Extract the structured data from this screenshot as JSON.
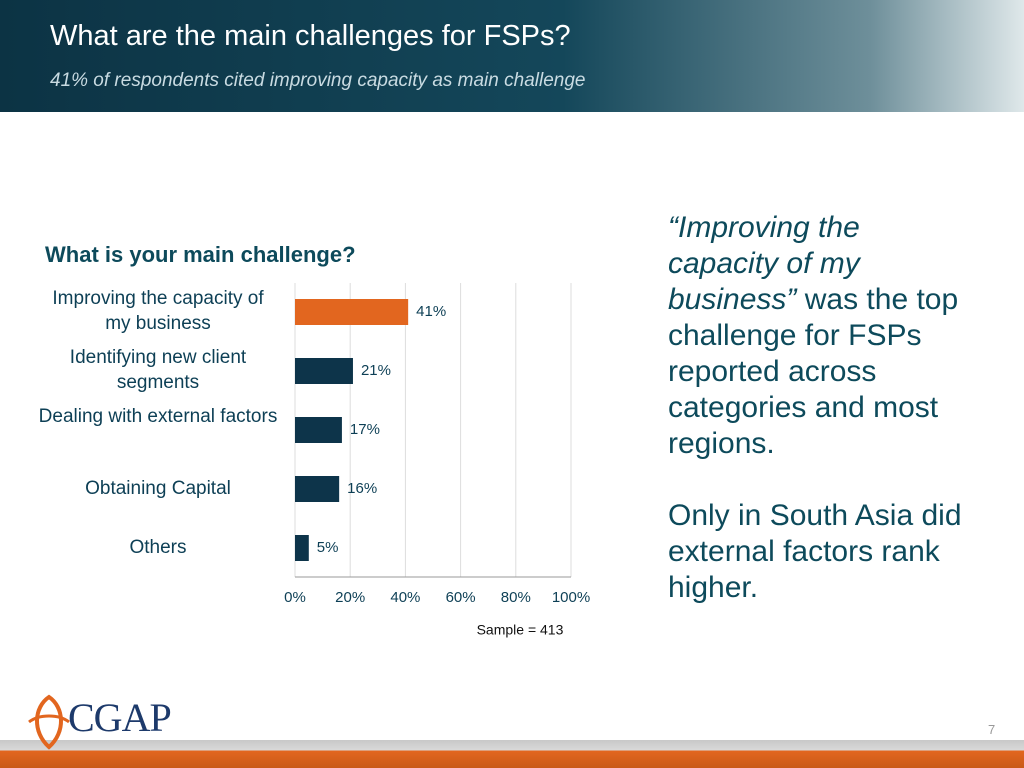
{
  "header": {
    "title": "What are the main challenges for FSPs?",
    "subtitle": "41% of respondents cited improving capacity as main challenge"
  },
  "chart_data": {
    "type": "hbar",
    "title": "What is your main challenge?",
    "categories": [
      "Improving the capacity of my business",
      "Identifying new client segments",
      "Dealing with external factors",
      "Obtaining Capital",
      "Others"
    ],
    "values": [
      41,
      21,
      17,
      16,
      5
    ],
    "value_labels": [
      "41%",
      "21%",
      "17%",
      "16%",
      "5%"
    ],
    "colors": [
      "#e2661f",
      "#0d344a",
      "#0d344a",
      "#0d344a",
      "#0d344a"
    ],
    "xlim": [
      0,
      100
    ],
    "xticks": [
      {
        "value": 0,
        "label": "0%"
      },
      {
        "value": 20,
        "label": "20%"
      },
      {
        "value": 40,
        "label": "40%"
      },
      {
        "value": 60,
        "label": "60%"
      },
      {
        "value": 80,
        "label": "80%"
      },
      {
        "value": 100,
        "label": "100%"
      }
    ],
    "grid": true,
    "note": "Sample = 413"
  },
  "callout": [
    {
      "italic": "“Improving the capacity of my business”",
      "text": " was the top challenge for FSPs reported across categories and most regions."
    },
    {
      "text": "Only in South Asia did  external factors rank higher."
    }
  ],
  "footer": {
    "logo": "CGAP",
    "page": "7"
  }
}
